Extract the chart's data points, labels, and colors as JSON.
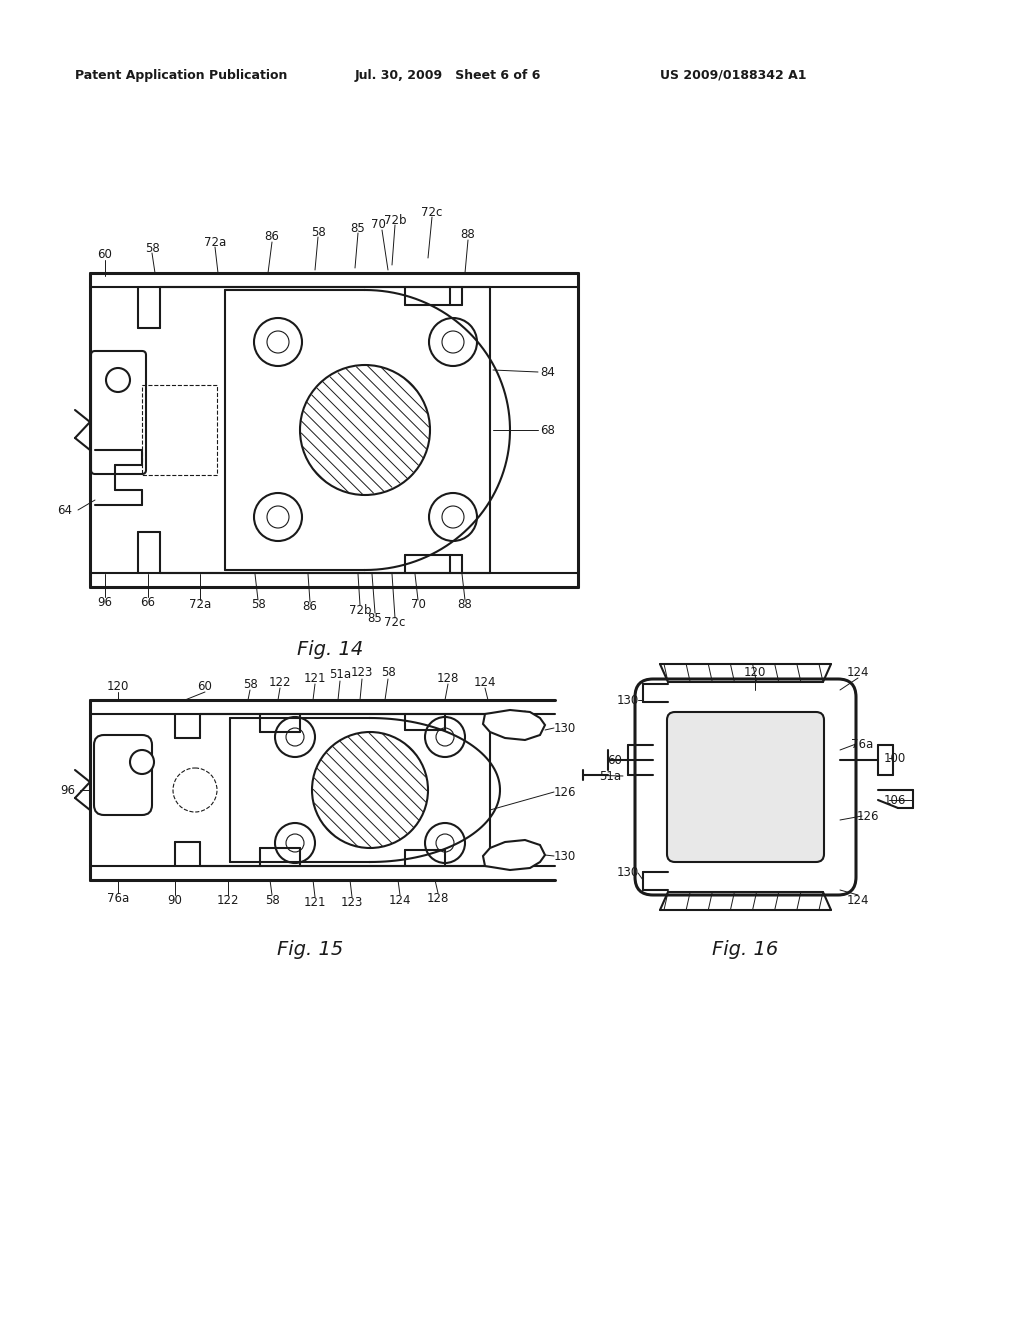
{
  "bg_color": "#ffffff",
  "line_color": "#1a1a1a",
  "header_left": "Patent Application Publication",
  "header_mid": "Jul. 30, 2009   Sheet 6 of 6",
  "header_right": "US 2009/0188342 A1",
  "fig14_label": "Fig. 14",
  "fig15_label": "Fig. 15",
  "fig16_label": "Fig. 16"
}
